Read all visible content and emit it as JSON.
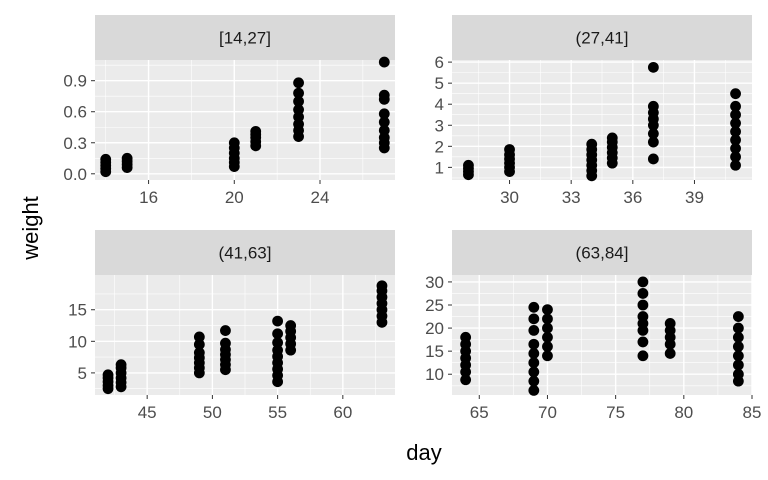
{
  "chart_data": {
    "type": "scatter",
    "xlabel": "day",
    "ylabel": "weight",
    "panels": [
      {
        "strip": "[14,27]",
        "xlim": [
          13.5,
          27.5
        ],
        "ylim": [
          -0.06,
          1.1
        ],
        "xticks": [
          16,
          20,
          24
        ],
        "xtick_labels": [
          "16",
          "20",
          "24"
        ],
        "yticks": [
          0.0,
          0.3,
          0.6,
          0.9
        ],
        "ytick_labels": [
          "0.0",
          "0.3",
          "0.6",
          "0.9"
        ],
        "points": [
          [
            14,
            0.02
          ],
          [
            14,
            0.05
          ],
          [
            14,
            0.08
          ],
          [
            14,
            0.11
          ],
          [
            14,
            0.14
          ],
          [
            15,
            0.06
          ],
          [
            15,
            0.09
          ],
          [
            15,
            0.12
          ],
          [
            15,
            0.15
          ],
          [
            20,
            0.07
          ],
          [
            20,
            0.11
          ],
          [
            20,
            0.15
          ],
          [
            20,
            0.2
          ],
          [
            20,
            0.25
          ],
          [
            20,
            0.3
          ],
          [
            21,
            0.27
          ],
          [
            21,
            0.31
          ],
          [
            21,
            0.35
          ],
          [
            21,
            0.38
          ],
          [
            21,
            0.41
          ],
          [
            23,
            0.36
          ],
          [
            23,
            0.42
          ],
          [
            23,
            0.48
          ],
          [
            23,
            0.55
          ],
          [
            23,
            0.62
          ],
          [
            23,
            0.7
          ],
          [
            23,
            0.78
          ],
          [
            23,
            0.88
          ],
          [
            27,
            0.25
          ],
          [
            27,
            0.3
          ],
          [
            27,
            0.35
          ],
          [
            27,
            0.42
          ],
          [
            27,
            0.5
          ],
          [
            27,
            0.58
          ],
          [
            27,
            0.72
          ],
          [
            27,
            0.76
          ],
          [
            27,
            1.08
          ]
        ]
      },
      {
        "strip": "(27,41]",
        "xlim": [
          27.2,
          41.8
        ],
        "ylim": [
          0.4,
          6.1
        ],
        "xticks": [
          30,
          33,
          36,
          39
        ],
        "xtick_labels": [
          "30",
          "33",
          "36",
          "39"
        ],
        "yticks": [
          1,
          2,
          3,
          4,
          5,
          6
        ],
        "ytick_labels": [
          "1",
          "2",
          "3",
          "4",
          "5",
          "6"
        ],
        "points": [
          [
            28,
            0.65
          ],
          [
            28,
            0.8
          ],
          [
            28,
            0.95
          ],
          [
            28,
            1.1
          ],
          [
            30,
            0.8
          ],
          [
            30,
            1.0
          ],
          [
            30,
            1.2
          ],
          [
            30,
            1.4
          ],
          [
            30,
            1.6
          ],
          [
            30,
            1.85
          ],
          [
            34,
            0.6
          ],
          [
            34,
            0.85
          ],
          [
            34,
            1.1
          ],
          [
            34,
            1.35
          ],
          [
            34,
            1.6
          ],
          [
            34,
            1.85
          ],
          [
            34,
            2.1
          ],
          [
            35,
            1.2
          ],
          [
            35,
            1.45
          ],
          [
            35,
            1.7
          ],
          [
            35,
            1.95
          ],
          [
            35,
            2.2
          ],
          [
            35,
            2.4
          ],
          [
            37,
            1.4
          ],
          [
            37,
            2.2
          ],
          [
            37,
            2.6
          ],
          [
            37,
            3.0
          ],
          [
            37,
            3.3
          ],
          [
            37,
            3.6
          ],
          [
            37,
            3.9
          ],
          [
            37,
            5.75
          ],
          [
            41,
            1.1
          ],
          [
            41,
            1.5
          ],
          [
            41,
            1.9
          ],
          [
            41,
            2.3
          ],
          [
            41,
            2.7
          ],
          [
            41,
            3.1
          ],
          [
            41,
            3.5
          ],
          [
            41,
            3.9
          ],
          [
            41,
            4.5
          ]
        ]
      },
      {
        "strip": "(41,63]",
        "xlim": [
          41.0,
          64.0
        ],
        "ylim": [
          1.5,
          20.5
        ],
        "xticks": [
          45,
          50,
          55,
          60
        ],
        "xtick_labels": [
          "45",
          "50",
          "55",
          "60"
        ],
        "yticks": [
          5,
          10,
          15
        ],
        "ytick_labels": [
          "5",
          "10",
          "15"
        ],
        "points": [
          [
            42,
            2.5
          ],
          [
            42,
            3.0
          ],
          [
            42,
            3.6
          ],
          [
            42,
            4.2
          ],
          [
            42,
            4.7
          ],
          [
            43,
            2.8
          ],
          [
            43,
            3.5
          ],
          [
            43,
            4.2
          ],
          [
            43,
            5.0
          ],
          [
            43,
            5.8
          ],
          [
            43,
            6.3
          ],
          [
            49,
            5.0
          ],
          [
            49,
            5.8
          ],
          [
            49,
            6.6
          ],
          [
            49,
            7.4
          ],
          [
            49,
            8.2
          ],
          [
            49,
            9.5
          ],
          [
            49,
            10.7
          ],
          [
            51,
            5.5
          ],
          [
            51,
            6.3
          ],
          [
            51,
            7.1
          ],
          [
            51,
            7.9
          ],
          [
            51,
            8.7
          ],
          [
            51,
            9.7
          ],
          [
            51,
            11.7
          ],
          [
            55,
            3.6
          ],
          [
            55,
            4.6
          ],
          [
            55,
            5.6
          ],
          [
            55,
            6.6
          ],
          [
            55,
            7.6
          ],
          [
            55,
            8.6
          ],
          [
            55,
            9.8
          ],
          [
            55,
            11.2
          ],
          [
            55,
            13.2
          ],
          [
            56,
            8.6
          ],
          [
            56,
            9.6
          ],
          [
            56,
            10.6
          ],
          [
            56,
            11.6
          ],
          [
            56,
            12.5
          ],
          [
            63,
            13.0
          ],
          [
            63,
            14.0
          ],
          [
            63,
            15.0
          ],
          [
            63,
            16.0
          ],
          [
            63,
            17.0
          ],
          [
            63,
            18.0
          ],
          [
            63,
            18.8
          ]
        ]
      },
      {
        "strip": "(63,84]",
        "xlim": [
          63.0,
          85.0
        ],
        "ylim": [
          5.5,
          31.5
        ],
        "xticks": [
          65,
          70,
          75,
          80,
          85
        ],
        "xtick_labels": [
          "65",
          "70",
          "75",
          "80",
          "85"
        ],
        "yticks": [
          10,
          15,
          20,
          25,
          30
        ],
        "ytick_labels": [
          "10",
          "15",
          "20",
          "25",
          "30"
        ],
        "points": [
          [
            64,
            8.8
          ],
          [
            64,
            10.5
          ],
          [
            64,
            12.0
          ],
          [
            64,
            13.5
          ],
          [
            64,
            15.0
          ],
          [
            64,
            16.5
          ],
          [
            64,
            18.0
          ],
          [
            69,
            6.5
          ],
          [
            69,
            8.5
          ],
          [
            69,
            10.5
          ],
          [
            69,
            12.5
          ],
          [
            69,
            14.5
          ],
          [
            69,
            16.5
          ],
          [
            69,
            19.5
          ],
          [
            69,
            22.0
          ],
          [
            69,
            24.5
          ],
          [
            70,
            14.0
          ],
          [
            70,
            16.0
          ],
          [
            70,
            18.0
          ],
          [
            70,
            20.0
          ],
          [
            70,
            22.0
          ],
          [
            70,
            24.0
          ],
          [
            77,
            14.0
          ],
          [
            77,
            17.0
          ],
          [
            77,
            19.5
          ],
          [
            77,
            21.0
          ],
          [
            77,
            22.5
          ],
          [
            77,
            25.0
          ],
          [
            77,
            27.5
          ],
          [
            77,
            30.0
          ],
          [
            79,
            14.5
          ],
          [
            79,
            16.5
          ],
          [
            79,
            18.0
          ],
          [
            79,
            19.5
          ],
          [
            79,
            21.0
          ],
          [
            84,
            8.5
          ],
          [
            84,
            10.0
          ],
          [
            84,
            12.0
          ],
          [
            84,
            14.0
          ],
          [
            84,
            16.0
          ],
          [
            84,
            18.0
          ],
          [
            84,
            20.0
          ],
          [
            84,
            22.5
          ]
        ]
      }
    ]
  }
}
